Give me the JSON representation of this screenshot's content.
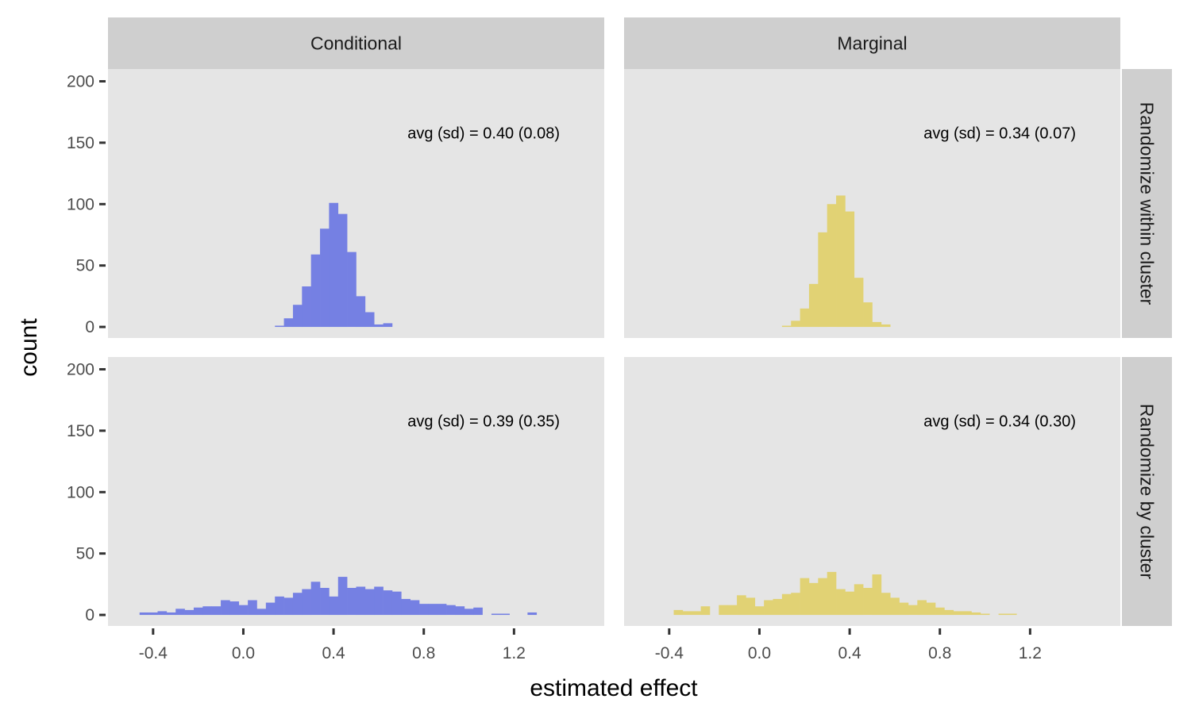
{
  "colors": {
    "panel_bg": "#e5e5e5",
    "strip_bg": "#cfcfcf",
    "conditional_fill": "#7580e3",
    "marginal_fill": "#e1d274",
    "text": "#1a1a1a",
    "tick_text": "#4d4d4d"
  },
  "chart_data": {
    "type": "histogram",
    "xlabel": "estimated effect",
    "ylabel": "count",
    "xlim": [
      -0.6,
      1.6
    ],
    "ylim": [
      -9,
      210
    ],
    "x_ticks": [
      -0.4,
      0.0,
      0.4,
      0.8,
      1.2
    ],
    "x_tick_labels": [
      "-0.4",
      "0.0",
      "0.4",
      "0.8",
      "1.2"
    ],
    "y_ticks": [
      0,
      50,
      100,
      150,
      200
    ],
    "y_tick_labels": [
      "0",
      "50",
      "100",
      "150",
      "200"
    ],
    "columns": [
      "Conditional",
      "Marginal"
    ],
    "rows": [
      "Randomize within cluster",
      "Randomize by cluster"
    ],
    "panels": [
      {
        "column": "Conditional",
        "row": "Randomize within cluster",
        "annotation": "avg (sd) = 0.40 (0.08)",
        "bin_start": 0.14,
        "bin_width": 0.04,
        "counts": [
          1,
          7,
          18,
          33,
          59,
          80,
          101,
          92,
          61,
          25,
          12,
          2,
          3
        ]
      },
      {
        "column": "Marginal",
        "row": "Randomize within cluster",
        "annotation": "avg (sd) = 0.34 (0.07)",
        "bin_start": 0.1,
        "bin_width": 0.04,
        "counts": [
          1,
          5,
          15,
          35,
          77,
          100,
          107,
          94,
          40,
          20,
          4,
          2
        ]
      },
      {
        "column": "Conditional",
        "row": "Randomize by cluster",
        "annotation": "avg (sd) = 0.39 (0.35)",
        "bin_start": -0.46,
        "bin_width": 0.04,
        "counts": [
          2,
          2,
          3,
          2,
          5,
          4,
          6,
          7,
          7,
          12,
          11,
          8,
          12,
          5,
          10,
          15,
          14,
          18,
          21,
          27,
          22,
          15,
          31,
          22,
          23,
          21,
          23,
          20,
          19,
          13,
          12,
          9,
          9,
          9,
          8,
          7,
          5,
          6,
          0,
          1,
          1,
          0,
          0,
          2
        ]
      },
      {
        "column": "Marginal",
        "row": "Randomize by cluster",
        "annotation": "avg (sd) = 0.34 (0.30)",
        "bin_start": -0.38,
        "bin_width": 0.04,
        "counts": [
          4,
          3,
          3,
          7,
          0,
          8,
          8,
          16,
          14,
          7,
          12,
          13,
          17,
          18,
          30,
          26,
          30,
          35,
          21,
          19,
          25,
          22,
          33,
          18,
          14,
          10,
          8,
          12,
          10,
          6,
          4,
          3,
          3,
          2,
          1,
          0,
          1,
          1
        ]
      }
    ]
  }
}
